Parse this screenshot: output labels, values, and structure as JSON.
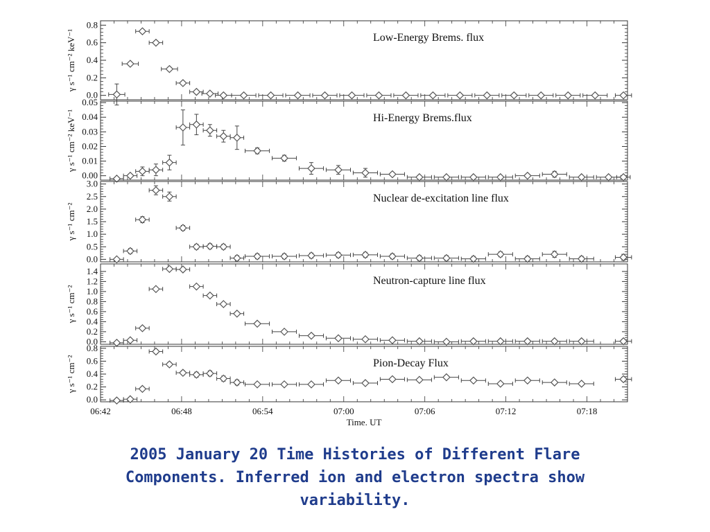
{
  "caption": {
    "line1": "2005 January 20 Time Histories of Different Flare",
    "line2": "Components.  Inferred ion and electron spectra show",
    "line3": "variability."
  },
  "chart_data": {
    "type": "scatter",
    "xlabel": "Time. UT",
    "x_ticks": [
      "06:42",
      "06:48",
      "06:54",
      "07:00",
      "07:06",
      "07:12",
      "07:18"
    ],
    "x_range_minutes": [
      0,
      39
    ],
    "panels": [
      {
        "title": "Low-Energy Brems. flux",
        "ylabel": "γ s⁻¹ cm⁻² keV⁻¹",
        "ylim": [
          -0.05,
          0.85
        ],
        "yticks": [
          "0.0",
          "0.2",
          "0.4",
          "0.6",
          "0.8"
        ],
        "ytick_values": [
          0,
          0.2,
          0.4,
          0.6,
          0.8
        ],
        "points": [
          {
            "x": 1.2,
            "y": 0.01,
            "ex": 0.6,
            "ey": 0.12
          },
          {
            "x": 2.2,
            "y": 0.36,
            "ex": 0.6,
            "ey": 0.02
          },
          {
            "x": 3.1,
            "y": 0.73,
            "ex": 0.5,
            "ey": 0.02
          },
          {
            "x": 4.1,
            "y": 0.6,
            "ex": 0.5,
            "ey": 0.02
          },
          {
            "x": 5.1,
            "y": 0.3,
            "ex": 0.6,
            "ey": 0.02
          },
          {
            "x": 6.1,
            "y": 0.14,
            "ex": 0.5,
            "ey": 0.02
          },
          {
            "x": 7.1,
            "y": 0.04,
            "ex": 0.5,
            "ey": 0.01
          },
          {
            "x": 8.1,
            "y": 0.02,
            "ex": 0.6,
            "ey": 0.01
          },
          {
            "x": 9.1,
            "y": 0.0,
            "ex": 0.6,
            "ey": 0.0
          },
          {
            "x": 10.6,
            "y": 0.0,
            "ex": 0.9,
            "ey": 0.0
          },
          {
            "x": 12.6,
            "y": 0.0,
            "ex": 0.9,
            "ey": 0.0
          },
          {
            "x": 14.6,
            "y": 0.0,
            "ex": 0.9,
            "ey": 0.0
          },
          {
            "x": 16.6,
            "y": 0.0,
            "ex": 0.9,
            "ey": 0.0
          },
          {
            "x": 18.6,
            "y": 0.0,
            "ex": 0.9,
            "ey": 0.0
          },
          {
            "x": 20.6,
            "y": 0.0,
            "ex": 0.9,
            "ey": 0.0
          },
          {
            "x": 22.6,
            "y": 0.0,
            "ex": 0.9,
            "ey": 0.0
          },
          {
            "x": 24.6,
            "y": 0.0,
            "ex": 0.9,
            "ey": 0.0
          },
          {
            "x": 26.6,
            "y": 0.0,
            "ex": 0.9,
            "ey": 0.0
          },
          {
            "x": 28.6,
            "y": 0.0,
            "ex": 0.9,
            "ey": 0.0
          },
          {
            "x": 30.6,
            "y": 0.0,
            "ex": 0.9,
            "ey": 0.0
          },
          {
            "x": 32.6,
            "y": 0.0,
            "ex": 0.9,
            "ey": 0.0
          },
          {
            "x": 34.6,
            "y": 0.0,
            "ex": 0.9,
            "ey": 0.0
          },
          {
            "x": 36.6,
            "y": 0.0,
            "ex": 0.9,
            "ey": 0.0
          },
          {
            "x": 38.7,
            "y": 0.0,
            "ex": 0.6,
            "ey": 0.0
          }
        ]
      },
      {
        "title": "Hi-Energy Brems.flux",
        "ylabel": "γ s⁻¹ cm⁻² keV⁻¹",
        "ylim": [
          -0.003,
          0.051
        ],
        "yticks": [
          "0.00",
          "0.01",
          "0.02",
          "0.03",
          "0.04",
          "0.05"
        ],
        "ytick_values": [
          0,
          0.01,
          0.02,
          0.03,
          0.04,
          0.05
        ],
        "points": [
          {
            "x": 1.2,
            "y": -0.002,
            "ex": 0.5,
            "ey": 0.001
          },
          {
            "x": 2.2,
            "y": 0.0,
            "ex": 0.5,
            "ey": 0.001
          },
          {
            "x": 3.1,
            "y": 0.003,
            "ex": 0.5,
            "ey": 0.003
          },
          {
            "x": 4.1,
            "y": 0.004,
            "ex": 0.5,
            "ey": 0.004
          },
          {
            "x": 5.1,
            "y": 0.009,
            "ex": 0.5,
            "ey": 0.005
          },
          {
            "x": 6.1,
            "y": 0.033,
            "ex": 0.5,
            "ey": 0.012
          },
          {
            "x": 7.1,
            "y": 0.035,
            "ex": 0.5,
            "ey": 0.007
          },
          {
            "x": 8.1,
            "y": 0.031,
            "ex": 0.5,
            "ey": 0.004
          },
          {
            "x": 9.1,
            "y": 0.027,
            "ex": 0.5,
            "ey": 0.004
          },
          {
            "x": 10.1,
            "y": 0.026,
            "ex": 0.5,
            "ey": 0.008
          },
          {
            "x": 11.6,
            "y": 0.017,
            "ex": 0.9,
            "ey": 0.002
          },
          {
            "x": 13.6,
            "y": 0.012,
            "ex": 0.9,
            "ey": 0.002
          },
          {
            "x": 15.6,
            "y": 0.005,
            "ex": 0.9,
            "ey": 0.004
          },
          {
            "x": 17.6,
            "y": 0.004,
            "ex": 0.9,
            "ey": 0.003
          },
          {
            "x": 19.6,
            "y": 0.002,
            "ex": 0.9,
            "ey": 0.003
          },
          {
            "x": 21.6,
            "y": 0.001,
            "ex": 0.9,
            "ey": 0.001
          },
          {
            "x": 23.6,
            "y": -0.001,
            "ex": 0.9,
            "ey": 0.001
          },
          {
            "x": 25.6,
            "y": -0.001,
            "ex": 0.9,
            "ey": 0.001
          },
          {
            "x": 27.6,
            "y": -0.001,
            "ex": 0.9,
            "ey": 0.001
          },
          {
            "x": 29.6,
            "y": -0.001,
            "ex": 0.9,
            "ey": 0.001
          },
          {
            "x": 31.6,
            "y": 0.0,
            "ex": 0.9,
            "ey": 0.001
          },
          {
            "x": 33.6,
            "y": 0.001,
            "ex": 0.9,
            "ey": 0.002
          },
          {
            "x": 35.6,
            "y": -0.001,
            "ex": 0.9,
            "ey": 0.001
          },
          {
            "x": 37.6,
            "y": -0.001,
            "ex": 0.9,
            "ey": 0.001
          },
          {
            "x": 38.7,
            "y": -0.001,
            "ex": 0.5,
            "ey": 0.001
          }
        ]
      },
      {
        "title": "Nuclear de-excitation line flux",
        "ylabel": "γ s⁻¹ cm⁻²",
        "ylim": [
          -0.1,
          3.1
        ],
        "yticks": [
          "0.0",
          "0.5",
          "1.0",
          "1.5",
          "2.0",
          "2.5",
          "3.0"
        ],
        "ytick_values": [
          0,
          0.5,
          1.0,
          1.5,
          2.0,
          2.5,
          3.0
        ],
        "points": [
          {
            "x": 1.2,
            "y": 0.0,
            "ex": 0.5,
            "ey": 0.02
          },
          {
            "x": 2.2,
            "y": 0.33,
            "ex": 0.5,
            "ey": 0.1
          },
          {
            "x": 3.1,
            "y": 1.58,
            "ex": 0.5,
            "ey": 0.12
          },
          {
            "x": 4.1,
            "y": 2.75,
            "ex": 0.5,
            "ey": 0.18
          },
          {
            "x": 5.1,
            "y": 2.5,
            "ex": 0.5,
            "ey": 0.18
          },
          {
            "x": 6.1,
            "y": 1.25,
            "ex": 0.5,
            "ey": 0.1
          },
          {
            "x": 7.1,
            "y": 0.5,
            "ex": 0.5,
            "ey": 0.1
          },
          {
            "x": 8.1,
            "y": 0.52,
            "ex": 0.5,
            "ey": 0.1
          },
          {
            "x": 9.1,
            "y": 0.5,
            "ex": 0.5,
            "ey": 0.1
          },
          {
            "x": 10.1,
            "y": 0.05,
            "ex": 0.5,
            "ey": 0.1
          },
          {
            "x": 11.6,
            "y": 0.12,
            "ex": 0.9,
            "ey": 0.1
          },
          {
            "x": 13.6,
            "y": 0.12,
            "ex": 0.9,
            "ey": 0.1
          },
          {
            "x": 15.6,
            "y": 0.15,
            "ex": 0.9,
            "ey": 0.1
          },
          {
            "x": 17.6,
            "y": 0.17,
            "ex": 0.9,
            "ey": 0.1
          },
          {
            "x": 19.6,
            "y": 0.18,
            "ex": 0.9,
            "ey": 0.1
          },
          {
            "x": 21.6,
            "y": 0.12,
            "ex": 0.9,
            "ey": 0.1
          },
          {
            "x": 23.6,
            "y": 0.05,
            "ex": 0.9,
            "ey": 0.1
          },
          {
            "x": 25.6,
            "y": 0.05,
            "ex": 0.9,
            "ey": 0.1
          },
          {
            "x": 27.6,
            "y": 0.02,
            "ex": 0.9,
            "ey": 0.1
          },
          {
            "x": 29.6,
            "y": 0.2,
            "ex": 0.9,
            "ey": 0.1
          },
          {
            "x": 31.6,
            "y": 0.02,
            "ex": 0.9,
            "ey": 0.1
          },
          {
            "x": 33.6,
            "y": 0.2,
            "ex": 0.9,
            "ey": 0.12
          },
          {
            "x": 35.6,
            "y": 0.02,
            "ex": 0.9,
            "ey": 0.1
          },
          {
            "x": 38.7,
            "y": 0.08,
            "ex": 0.6,
            "ey": 0.12
          }
        ]
      },
      {
        "title": "Neutron-capture line flux",
        "ylabel": "γ s⁻¹ cm⁻²",
        "ylim": [
          -0.05,
          1.55
        ],
        "yticks": [
          "0.0",
          "0.2",
          "0.4",
          "0.6",
          "0.8",
          "1.0",
          "1.2",
          "1.4"
        ],
        "ytick_values": [
          0,
          0.2,
          0.4,
          0.6,
          0.8,
          1.0,
          1.2,
          1.4
        ],
        "points": [
          {
            "x": 1.2,
            "y": -0.02,
            "ex": 0.5,
            "ey": 0.01
          },
          {
            "x": 2.2,
            "y": 0.03,
            "ex": 0.5,
            "ey": 0.02
          },
          {
            "x": 3.1,
            "y": 0.27,
            "ex": 0.5,
            "ey": 0.02
          },
          {
            "x": 4.1,
            "y": 1.05,
            "ex": 0.5,
            "ey": 0.02
          },
          {
            "x": 5.1,
            "y": 1.45,
            "ex": 0.5,
            "ey": 0.02
          },
          {
            "x": 6.1,
            "y": 1.44,
            "ex": 0.5,
            "ey": 0.02
          },
          {
            "x": 7.1,
            "y": 1.1,
            "ex": 0.5,
            "ey": 0.02
          },
          {
            "x": 8.1,
            "y": 0.92,
            "ex": 0.5,
            "ey": 0.02
          },
          {
            "x": 9.1,
            "y": 0.75,
            "ex": 0.5,
            "ey": 0.02
          },
          {
            "x": 10.1,
            "y": 0.56,
            "ex": 0.5,
            "ey": 0.02
          },
          {
            "x": 11.6,
            "y": 0.36,
            "ex": 0.9,
            "ey": 0.02
          },
          {
            "x": 13.6,
            "y": 0.2,
            "ex": 0.9,
            "ey": 0.02
          },
          {
            "x": 15.6,
            "y": 0.12,
            "ex": 0.9,
            "ey": 0.02
          },
          {
            "x": 17.6,
            "y": 0.07,
            "ex": 0.9,
            "ey": 0.02
          },
          {
            "x": 19.6,
            "y": 0.05,
            "ex": 0.9,
            "ey": 0.02
          },
          {
            "x": 21.6,
            "y": 0.03,
            "ex": 0.9,
            "ey": 0.02
          },
          {
            "x": 23.6,
            "y": 0.01,
            "ex": 0.9,
            "ey": 0.02
          },
          {
            "x": 25.6,
            "y": 0.0,
            "ex": 0.9,
            "ey": 0.02
          },
          {
            "x": 27.6,
            "y": 0.01,
            "ex": 0.9,
            "ey": 0.02
          },
          {
            "x": 29.6,
            "y": 0.01,
            "ex": 0.9,
            "ey": 0.02
          },
          {
            "x": 31.6,
            "y": 0.01,
            "ex": 0.9,
            "ey": 0.02
          },
          {
            "x": 33.6,
            "y": 0.01,
            "ex": 0.9,
            "ey": 0.02
          },
          {
            "x": 35.6,
            "y": 0.01,
            "ex": 0.9,
            "ey": 0.02
          },
          {
            "x": 38.7,
            "y": 0.01,
            "ex": 0.6,
            "ey": 0.02
          }
        ]
      },
      {
        "title": "Pion-Decay Flux",
        "ylabel": "γ s⁻¹ cm⁻²",
        "ylim": [
          -0.03,
          0.83
        ],
        "yticks": [
          "0.0",
          "0.2",
          "0.4",
          "0.6",
          "0.8"
        ],
        "ytick_values": [
          0,
          0.2,
          0.4,
          0.6,
          0.8
        ],
        "points": [
          {
            "x": 1.2,
            "y": -0.01,
            "ex": 0.5,
            "ey": 0.01
          },
          {
            "x": 2.2,
            "y": 0.01,
            "ex": 0.5,
            "ey": 0.02
          },
          {
            "x": 3.1,
            "y": 0.17,
            "ex": 0.5,
            "ey": 0.02
          },
          {
            "x": 4.1,
            "y": 0.75,
            "ex": 0.5,
            "ey": 0.03
          },
          {
            "x": 5.1,
            "y": 0.55,
            "ex": 0.5,
            "ey": 0.03
          },
          {
            "x": 6.1,
            "y": 0.42,
            "ex": 0.5,
            "ey": 0.03
          },
          {
            "x": 7.1,
            "y": 0.39,
            "ex": 0.5,
            "ey": 0.04
          },
          {
            "x": 8.1,
            "y": 0.41,
            "ex": 0.5,
            "ey": 0.04
          },
          {
            "x": 9.1,
            "y": 0.33,
            "ex": 0.5,
            "ey": 0.04
          },
          {
            "x": 10.1,
            "y": 0.27,
            "ex": 0.5,
            "ey": 0.04
          },
          {
            "x": 11.6,
            "y": 0.24,
            "ex": 0.9,
            "ey": 0.02
          },
          {
            "x": 13.6,
            "y": 0.24,
            "ex": 0.9,
            "ey": 0.02
          },
          {
            "x": 15.6,
            "y": 0.24,
            "ex": 0.9,
            "ey": 0.02
          },
          {
            "x": 17.6,
            "y": 0.3,
            "ex": 0.9,
            "ey": 0.02
          },
          {
            "x": 19.6,
            "y": 0.26,
            "ex": 0.9,
            "ey": 0.02
          },
          {
            "x": 21.6,
            "y": 0.32,
            "ex": 0.9,
            "ey": 0.02
          },
          {
            "x": 23.6,
            "y": 0.31,
            "ex": 0.9,
            "ey": 0.02
          },
          {
            "x": 25.6,
            "y": 0.35,
            "ex": 0.9,
            "ey": 0.02
          },
          {
            "x": 27.6,
            "y": 0.3,
            "ex": 0.9,
            "ey": 0.02
          },
          {
            "x": 29.6,
            "y": 0.25,
            "ex": 0.9,
            "ey": 0.02
          },
          {
            "x": 31.6,
            "y": 0.3,
            "ex": 0.9,
            "ey": 0.02
          },
          {
            "x": 33.6,
            "y": 0.27,
            "ex": 0.9,
            "ey": 0.02
          },
          {
            "x": 35.6,
            "y": 0.25,
            "ex": 0.9,
            "ey": 0.02
          },
          {
            "x": 38.7,
            "y": 0.32,
            "ex": 0.6,
            "ey": 0.03
          }
        ]
      }
    ]
  }
}
